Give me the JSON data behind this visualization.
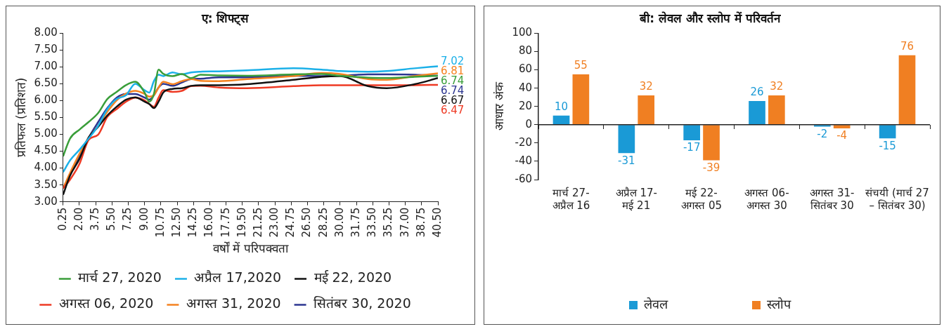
{
  "chart_data": [
    {
      "type": "line",
      "title": "ए: शिफ्ट्स",
      "xlabel": "वर्षों में परिपक्वता",
      "ylabel": "प्रतिफल (प्रतिशत)",
      "x": [
        0.25,
        1,
        2,
        3,
        4,
        5,
        6,
        7,
        8,
        9,
        9.5,
        10,
        10.5,
        11,
        12,
        13,
        14,
        15,
        17,
        20,
        25,
        28,
        30,
        33,
        35,
        38,
        40.5
      ],
      "xlim": [
        0.25,
        40.5
      ],
      "xticks": [
        {
          "value": 0.25,
          "label": "0.25"
        },
        {
          "value": 2,
          "label": "2.00"
        },
        {
          "value": 3.75,
          "label": "3.75"
        },
        {
          "value": 5.5,
          "label": "5.50"
        },
        {
          "value": 7.25,
          "label": "7.25"
        },
        {
          "value": 9,
          "label": "9.00"
        },
        {
          "value": 10.75,
          "label": "10.75"
        },
        {
          "value": 12.5,
          "label": "12.50"
        },
        {
          "value": 14.25,
          "label": "14.25"
        },
        {
          "value": 16,
          "label": "16.00"
        },
        {
          "value": 17.75,
          "label": "17.75"
        },
        {
          "value": 19.5,
          "label": "19.50"
        },
        {
          "value": 21.25,
          "label": "21.25"
        },
        {
          "value": 23,
          "label": "23.00"
        },
        {
          "value": 24.75,
          "label": "24.75"
        },
        {
          "value": 26.5,
          "label": "26.50"
        },
        {
          "value": 28.25,
          "label": "28.25"
        },
        {
          "value": 30,
          "label": "30.00"
        },
        {
          "value": 31.75,
          "label": "31.75"
        },
        {
          "value": 33.5,
          "label": "33.50"
        },
        {
          "value": 35.25,
          "label": "35.25"
        },
        {
          "value": 37,
          "label": "37.00"
        },
        {
          "value": 38.75,
          "label": "38.75"
        },
        {
          "value": 40.5,
          "label": "40.50"
        }
      ],
      "ylim": [
        3,
        8
      ],
      "yticks": [
        {
          "value": 3,
          "label": "3.00"
        },
        {
          "value": 3.5,
          "label": "3.50"
        },
        {
          "value": 4,
          "label": "4.00"
        },
        {
          "value": 4.5,
          "label": "4.50"
        },
        {
          "value": 5,
          "label": "5.00"
        },
        {
          "value": 5.5,
          "label": "5.50"
        },
        {
          "value": 6,
          "label": "6.00"
        },
        {
          "value": 6.5,
          "label": "6.50"
        },
        {
          "value": 7,
          "label": "7.00"
        },
        {
          "value": 7.5,
          "label": "7.50"
        },
        {
          "value": 8,
          "label": "8.00"
        }
      ],
      "grid": false,
      "legend": "bottom",
      "series": [
        {
          "name": "मार्च 27, 2020",
          "color": "#3a9e3a",
          "values": [
            4.35,
            4.88,
            5.14,
            5.37,
            5.63,
            6.05,
            6.26,
            6.46,
            6.56,
            6.24,
            5.97,
            6.2,
            6.92,
            6.8,
            6.73,
            6.79,
            6.67,
            6.77,
            6.75,
            6.74,
            6.78,
            6.79,
            6.74,
            6.68,
            6.67,
            6.71,
            6.74
          ],
          "value_labels": [
            null,
            null,
            null,
            null,
            null,
            null,
            null,
            null,
            null,
            null,
            null,
            null,
            null,
            null,
            null,
            null,
            null,
            null,
            null,
            null,
            null,
            null,
            null,
            null,
            null,
            null,
            "6.74"
          ]
        },
        {
          "name": "अप्रैल 17,2020",
          "color": "#1bb0e8",
          "values": [
            3.88,
            4.23,
            4.54,
            4.88,
            5.25,
            5.75,
            6.05,
            6.16,
            6.5,
            6.31,
            6.24,
            6.58,
            6.77,
            6.73,
            6.84,
            6.78,
            6.84,
            6.86,
            6.87,
            6.9,
            6.96,
            6.92,
            6.88,
            6.86,
            6.88,
            6.96,
            7.02
          ],
          "value_labels": [
            null,
            null,
            null,
            null,
            null,
            null,
            null,
            null,
            null,
            null,
            null,
            null,
            null,
            null,
            null,
            null,
            null,
            null,
            null,
            null,
            null,
            null,
            null,
            null,
            null,
            null,
            "7.02"
          ]
        },
        {
          "name": "मई 22, 2020",
          "color": "#111111",
          "values": [
            3.21,
            3.78,
            4.27,
            4.91,
            5.22,
            5.56,
            5.82,
            6.03,
            6.1,
            5.97,
            5.9,
            5.78,
            5.97,
            6.24,
            6.35,
            6.37,
            6.44,
            6.46,
            6.46,
            6.49,
            6.62,
            6.71,
            6.73,
            6.43,
            6.37,
            6.49,
            6.67
          ],
          "value_labels": [
            null,
            null,
            null,
            null,
            null,
            null,
            null,
            null,
            null,
            null,
            null,
            null,
            null,
            null,
            null,
            null,
            null,
            null,
            null,
            null,
            null,
            null,
            null,
            null,
            null,
            null,
            "6.67"
          ]
        },
        {
          "name": "अगस्त 06, 2020",
          "color": "#ee3a24",
          "values": [
            3.4,
            3.66,
            4.12,
            4.84,
            4.99,
            5.52,
            5.75,
            5.97,
            6.09,
            6.01,
            5.9,
            5.82,
            6.09,
            6.31,
            6.26,
            6.29,
            6.43,
            6.44,
            6.39,
            6.37,
            6.43,
            6.46,
            6.46,
            6.46,
            6.46,
            6.46,
            6.47
          ],
          "value_labels": [
            null,
            null,
            null,
            null,
            null,
            null,
            null,
            null,
            null,
            null,
            null,
            null,
            null,
            null,
            null,
            null,
            null,
            null,
            null,
            null,
            null,
            null,
            null,
            null,
            null,
            null,
            "6.47"
          ]
        },
        {
          "name": "अगस्त 31, 2020",
          "color": "#f58220",
          "values": [
            3.4,
            3.86,
            4.42,
            4.91,
            5.25,
            5.67,
            6.01,
            6.21,
            6.29,
            6.2,
            6.12,
            6.16,
            6.39,
            6.56,
            6.49,
            6.58,
            6.64,
            6.59,
            6.58,
            6.64,
            6.73,
            6.82,
            6.79,
            6.64,
            6.62,
            6.73,
            6.81
          ],
          "value_labels": [
            null,
            null,
            null,
            null,
            null,
            null,
            null,
            null,
            null,
            null,
            null,
            null,
            null,
            null,
            null,
            null,
            null,
            null,
            null,
            null,
            null,
            null,
            null,
            null,
            null,
            null,
            "6.81"
          ]
        },
        {
          "name": "सितंबर 30, 2020",
          "color": "#2b3590",
          "values": [
            3.4,
            3.82,
            4.38,
            4.91,
            5.36,
            5.78,
            6.09,
            6.2,
            6.2,
            6.09,
            6.03,
            6.16,
            6.39,
            6.5,
            6.44,
            6.54,
            6.64,
            6.65,
            6.69,
            6.69,
            6.74,
            6.73,
            6.74,
            6.78,
            6.78,
            6.77,
            6.74
          ],
          "value_labels": [
            null,
            null,
            null,
            null,
            null,
            null,
            null,
            null,
            null,
            null,
            null,
            null,
            null,
            null,
            null,
            null,
            null,
            null,
            null,
            null,
            null,
            null,
            null,
            null,
            null,
            null,
            "6.74"
          ]
        }
      ]
    },
    {
      "type": "bar",
      "title": "बी: लेवल और स्लोप में परिवर्तन",
      "ylabel": "आधार अंक",
      "categories": [
        "मार्च 27-\nअप्रैल 16",
        "अप्रैल 17-\nमई 21",
        "मई 22-\nअगस्त 05",
        "अगस्त 06-\nअगस्त 30",
        "अगस्त 31-\nसितंबर 30",
        "संचयी (मार्च 27\n– सितंबर 30)"
      ],
      "ylim": [
        -60,
        100
      ],
      "yticks": [
        -60,
        -40,
        -20,
        0,
        20,
        40,
        60,
        80,
        100
      ],
      "grid": false,
      "legend": "bottom",
      "data_labels": true,
      "ref_lines": [
        {
          "axis": "y",
          "value": 0,
          "label": null,
          "color": "#222222"
        }
      ],
      "series": [
        {
          "name": "लेवल",
          "color": "#1a9ad6",
          "values": [
            10,
            -31,
            -17,
            26,
            -2,
            -15
          ]
        },
        {
          "name": "स्लोप",
          "color": "#f07f22",
          "values": [
            55,
            32,
            -39,
            32,
            -4,
            76
          ]
        }
      ]
    }
  ]
}
